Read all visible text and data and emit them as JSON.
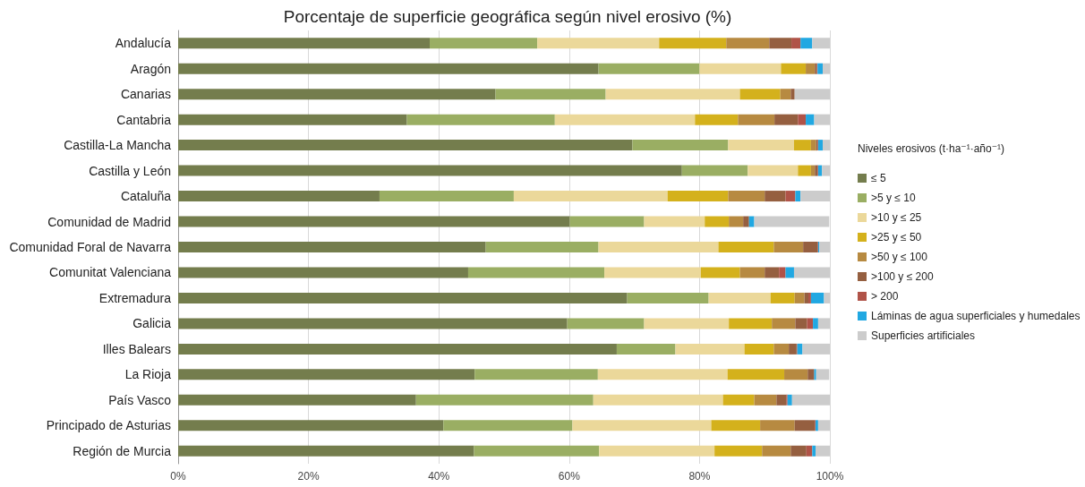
{
  "chart_data": {
    "type": "bar",
    "orientation": "horizontal",
    "stacked": true,
    "title": "Porcentaje de superficie geográfica según nivel erosivo (%)",
    "legend_title": "Niveles erosivos (t·ha⁻¹·año⁻¹)",
    "categories": [
      "Andalucía",
      "Aragón",
      "Canarias",
      "Cantabria",
      "Castilla-La Mancha",
      "Castilla y León",
      "Cataluña",
      "Comunidad de Madrid",
      "Comunidad Foral de Navarra",
      "Comunitat Valenciana",
      "Extremadura",
      "Galicia",
      "Illes Balears",
      "La Rioja",
      "País Vasco",
      "Principado de Asturias",
      "Región de Murcia"
    ],
    "series": [
      {
        "name": "≤ 5",
        "color": "#747d4d",
        "values": [
          38.6,
          64.5,
          48.7,
          35.1,
          69.7,
          77.3,
          30.9,
          60.1,
          47.2,
          44.5,
          68.9,
          59.7,
          67.3,
          45.5,
          36.5,
          40.7,
          45.4
        ]
      },
      {
        "name": ">5 y ≤ 10",
        "color": "#9aae63",
        "values": [
          16.5,
          15.5,
          16.9,
          22.7,
          14.7,
          10.1,
          20.6,
          11.4,
          17.3,
          20.9,
          12.5,
          11.8,
          9.0,
          18.9,
          27.2,
          19.8,
          19.2
        ]
      },
      {
        "name": ">10 y ≤ 25",
        "color": "#ebd89a",
        "values": [
          18.7,
          12.5,
          20.6,
          21.5,
          10.1,
          7.7,
          23.6,
          9.3,
          18.4,
          14.8,
          9.5,
          13.0,
          10.6,
          19.9,
          19.9,
          21.3,
          17.7
        ]
      },
      {
        "name": ">25 y ≤ 50",
        "color": "#d4b11c",
        "values": [
          10.3,
          3.8,
          6.2,
          6.6,
          2.6,
          2.0,
          9.3,
          3.7,
          8.5,
          6.0,
          3.7,
          6.6,
          4.5,
          8.7,
          4.8,
          7.5,
          7.3
        ]
      },
      {
        "name": ">50 y ≤ 100",
        "color": "#b78a41",
        "values": [
          6.6,
          1.4,
          1.6,
          5.6,
          0.8,
          0.6,
          5.6,
          2.2,
          4.5,
          3.8,
          1.5,
          3.6,
          2.3,
          3.6,
          3.4,
          5.3,
          4.4
        ]
      },
      {
        "name": ">100 y ≤ 200",
        "color": "#955f40",
        "values": [
          3.4,
          0.3,
          0.6,
          3.6,
          0.2,
          0.4,
          3.2,
          0.9,
          2.2,
          2.2,
          0.6,
          1.8,
          1.2,
          1.0,
          1.5,
          3.1,
          2.4
        ]
      },
      {
        "name": "> 200",
        "color": "#b05348",
        "values": [
          1.4,
          0.1,
          0.0,
          1.2,
          0.1,
          0.1,
          1.5,
          null,
          0.1,
          1.0,
          0.4,
          0.9,
          0.1,
          null,
          0.2,
          0.1,
          0.9
        ]
      },
      {
        "name": "Láminas de agua superficiales y humedales",
        "color": "#21a8e2",
        "values": [
          1.8,
          0.8,
          0.0,
          1.3,
          0.7,
          0.6,
          0.8,
          0.8,
          0.2,
          1.3,
          2.0,
          0.8,
          0.8,
          0.3,
          0.7,
          0.4,
          0.5
        ]
      },
      {
        "name": "Superficies artificiales",
        "color": "#cccccc",
        "values": [
          2.7,
          1.1,
          5.4,
          2.4,
          1.1,
          1.2,
          4.5,
          11.5,
          1.6,
          5.5,
          0.9,
          1.8,
          4.2,
          2.0,
          5.8,
          1.8,
          2.2
        ]
      }
    ],
    "xlim": [
      0,
      100
    ],
    "xticks": [
      {
        "value": 0,
        "label": "0%"
      },
      {
        "value": 20,
        "label": "20%"
      },
      {
        "value": 40,
        "label": "40%"
      },
      {
        "value": 60,
        "label": "60%"
      },
      {
        "value": 80,
        "label": "80%"
      },
      {
        "value": 100,
        "label": "100%"
      }
    ],
    "grid": "x",
    "legend": "right"
  }
}
